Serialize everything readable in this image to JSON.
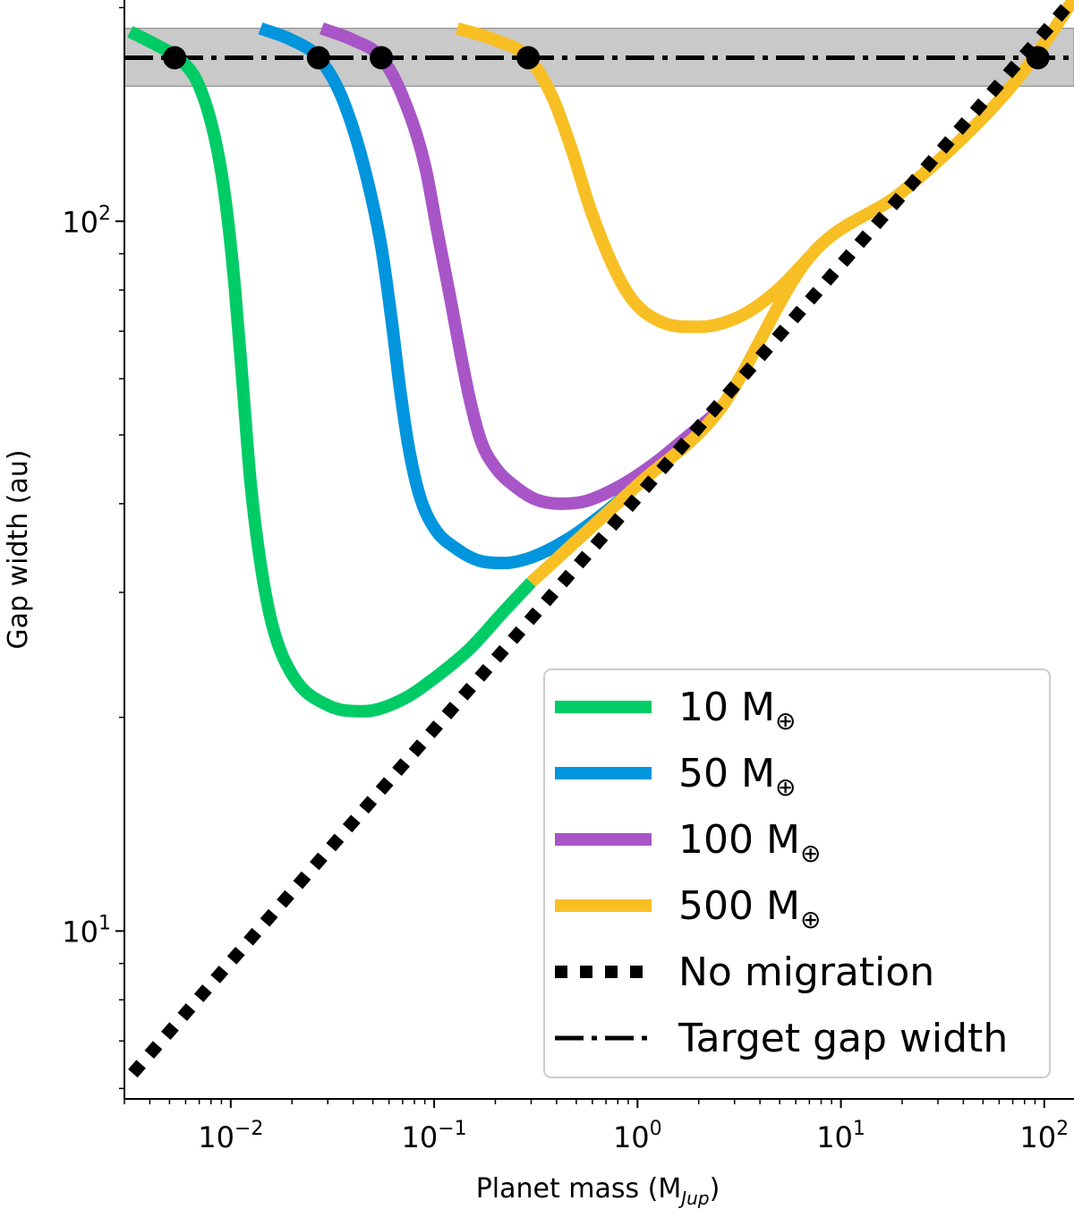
{
  "chart_data": {
    "type": "line",
    "xlabel": "Planet mass (M",
    "xlabel_sub": "Jup",
    "xlabel_close": ")",
    "ylabel": "Gap width  (au)",
    "xscale": "log",
    "yscale": "log",
    "xlim": [
      0.003,
      140
    ],
    "ylim": [
      5.8,
      205
    ],
    "x_ticks": [
      {
        "value": 0.01,
        "base": "10",
        "exp": "−2"
      },
      {
        "value": 0.1,
        "base": "10",
        "exp": "−1"
      },
      {
        "value": 1,
        "base": "10",
        "exp": "0"
      },
      {
        "value": 10,
        "base": "10",
        "exp": "1"
      },
      {
        "value": 100,
        "base": "10",
        "exp": "2"
      }
    ],
    "y_ticks": [
      {
        "value": 10,
        "base": "10",
        "exp": "1"
      },
      {
        "value": 100,
        "base": "10",
        "exp": "2"
      }
    ],
    "target_band": [
      155,
      187
    ],
    "target_gap_width": 170,
    "series": [
      {
        "name": "10 M",
        "sub": "⊕",
        "color": "#00cc66",
        "x": [
          0.0032,
          0.0045,
          0.0055,
          0.007,
          0.0085,
          0.0095,
          0.0105,
          0.0115,
          0.0125,
          0.014,
          0.016,
          0.02,
          0.03,
          0.045,
          0.07,
          0.1,
          0.15,
          0.22,
          0.3
        ],
        "y": [
          185,
          176,
          170,
          155,
          128,
          105,
          80,
          58,
          43,
          33,
          27,
          23,
          20.8,
          20.4,
          21.2,
          22.7,
          25,
          28.2,
          31
        ]
      },
      {
        "name": "50 M",
        "sub": "⊕",
        "color": "#0095dd",
        "x": [
          0.014,
          0.02,
          0.027,
          0.035,
          0.045,
          0.055,
          0.062,
          0.068,
          0.075,
          0.085,
          0.1,
          0.13,
          0.17,
          0.22,
          0.3,
          0.45,
          0.7,
          1.0
        ],
        "y": [
          187,
          180,
          170,
          150,
          120,
          92,
          72,
          58,
          48,
          41,
          37,
          34.5,
          33.2,
          33,
          33.6,
          35.6,
          39,
          42.5
        ]
      },
      {
        "name": "100 M",
        "sub": "⊕",
        "color": "#a855c7",
        "x": [
          0.028,
          0.04,
          0.055,
          0.07,
          0.09,
          0.105,
          0.12,
          0.135,
          0.15,
          0.17,
          0.2,
          0.25,
          0.32,
          0.42,
          0.55,
          0.8,
          1.2,
          1.8,
          2.5
        ],
        "y": [
          187,
          180,
          170,
          150,
          120,
          95,
          78,
          65,
          56,
          49,
          45,
          42.3,
          40.5,
          40,
          40.3,
          42.2,
          45.5,
          50,
          54
        ]
      },
      {
        "name": "500 M",
        "sub": "⊕",
        "color": "#f8bf24",
        "x": [
          0.13,
          0.2,
          0.29,
          0.38,
          0.48,
          0.58,
          0.68,
          0.78,
          0.9,
          1.05,
          1.3,
          1.6,
          2.0,
          2.6,
          3.5,
          5,
          7
        ],
        "y": [
          187,
          180,
          170,
          150,
          125,
          105,
          93,
          85,
          79,
          75,
          72.2,
          71.1,
          71,
          71.8,
          74.5,
          80.5,
          89
        ]
      },
      {
        "name": "No migration",
        "style": "dotted",
        "color": "#000000",
        "x": [
          0.0033,
          0.3,
          140
        ],
        "y": [
          6.3,
          31,
          206
        ]
      }
    ],
    "merged_curve": {
      "x": [
        0.3,
        1,
        2.5,
        7,
        20,
        60,
        100,
        140
      ],
      "y": [
        31,
        42.5,
        54,
        89,
        110,
        148,
        178,
        206
      ]
    },
    "markers": [
      {
        "x": 0.0053,
        "y": 170
      },
      {
        "x": 0.027,
        "y": 170
      },
      {
        "x": 0.055,
        "y": 170
      },
      {
        "x": 0.29,
        "y": 170
      },
      {
        "x": 93,
        "y": 170
      }
    ],
    "legend": {
      "placement": "lower-right",
      "entries": [
        {
          "label": "10 M",
          "sub": "⊕",
          "color": "#00cc66",
          "style": "solid"
        },
        {
          "label": "50 M",
          "sub": "⊕",
          "color": "#0095dd",
          "style": "solid"
        },
        {
          "label": "100 M",
          "sub": "⊕",
          "color": "#a855c7",
          "style": "solid"
        },
        {
          "label": "500 M",
          "sub": "⊕",
          "color": "#f8bf24",
          "style": "solid"
        },
        {
          "label": "No migration",
          "sub": "",
          "color": "#000000",
          "style": "dotted"
        },
        {
          "label": "Target gap width",
          "sub": "",
          "color": "#000000",
          "style": "dashdot"
        }
      ]
    }
  }
}
